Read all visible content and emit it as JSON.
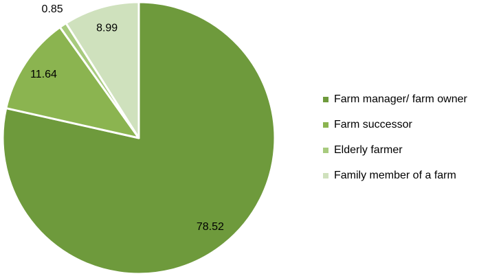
{
  "chart_data": {
    "type": "pie",
    "categories": [
      "Farm manager/ farm owner",
      "Farm successor",
      "Elderly farmer",
      "Family member of a farm"
    ],
    "values": [
      78.52,
      11.64,
      0.85,
      8.99
    ],
    "colors": [
      "#6e9a3c",
      "#8bb450",
      "#a8cb7e",
      "#cfe1bd"
    ],
    "legend": "right"
  }
}
